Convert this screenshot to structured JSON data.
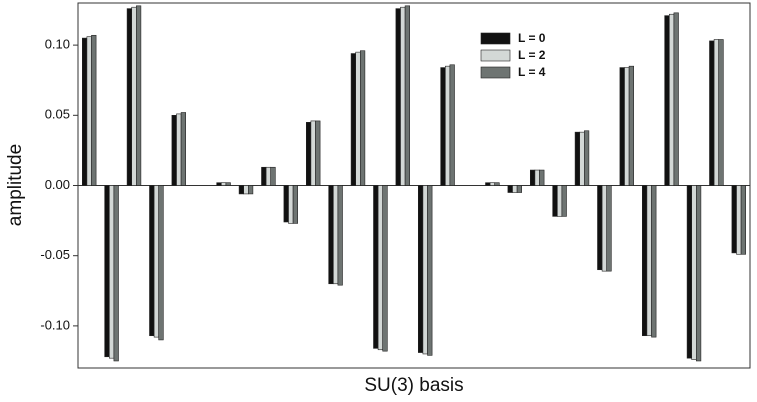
{
  "chart_data": {
    "type": "bar",
    "x_label": "SU(3) basis",
    "y_label": "amplitude",
    "categories": [
      null,
      null,
      null,
      null,
      null,
      null,
      null,
      null,
      null,
      null,
      null,
      null,
      null,
      null,
      null,
      null,
      null,
      null,
      null,
      null,
      null,
      null,
      null,
      null,
      null,
      null,
      null,
      null,
      null,
      null
    ],
    "series": [
      {
        "name": "L = 0",
        "color": "#111111",
        "values": [
          0.105,
          -0.122,
          0.126,
          -0.107,
          0.05,
          0.0,
          0.002,
          -0.006,
          0.013,
          -0.026,
          0.045,
          -0.07,
          0.094,
          -0.116,
          0.126,
          -0.119,
          0.084,
          0.0,
          0.002,
          -0.005,
          0.011,
          -0.022,
          0.038,
          -0.06,
          0.084,
          -0.107,
          0.121,
          -0.123,
          0.103,
          -0.048
        ]
      },
      {
        "name": "L = 2",
        "color": "#d3d8d6",
        "values": [
          0.106,
          -0.123,
          0.127,
          -0.108,
          0.051,
          0.0,
          0.002,
          -0.006,
          0.013,
          -0.027,
          0.046,
          -0.07,
          0.095,
          -0.117,
          0.127,
          -0.12,
          0.085,
          0.0,
          0.002,
          -0.005,
          0.011,
          -0.022,
          0.038,
          -0.061,
          0.084,
          -0.107,
          0.122,
          -0.124,
          0.104,
          -0.049
        ]
      },
      {
        "name": "L = 4",
        "color": "#6e7472",
        "values": [
          0.107,
          -0.125,
          0.128,
          -0.11,
          0.052,
          0.0,
          0.002,
          -0.006,
          0.013,
          -0.027,
          0.046,
          -0.071,
          0.096,
          -0.118,
          0.128,
          -0.121,
          0.086,
          0.0,
          0.002,
          -0.005,
          0.011,
          -0.022,
          0.039,
          -0.061,
          0.085,
          -0.108,
          0.123,
          -0.125,
          0.104,
          -0.049
        ]
      }
    ],
    "ylim": [
      -0.13,
      0.13
    ],
    "yticks": [
      {
        "value": -0.1,
        "label": "-0.10"
      },
      {
        "value": -0.05,
        "label": "-0.05"
      },
      {
        "value": 0,
        "label": "0.00"
      },
      {
        "value": 0.05,
        "label": "0.05"
      },
      {
        "value": 0.1,
        "label": "0.10"
      }
    ],
    "legend": "upper right"
  }
}
